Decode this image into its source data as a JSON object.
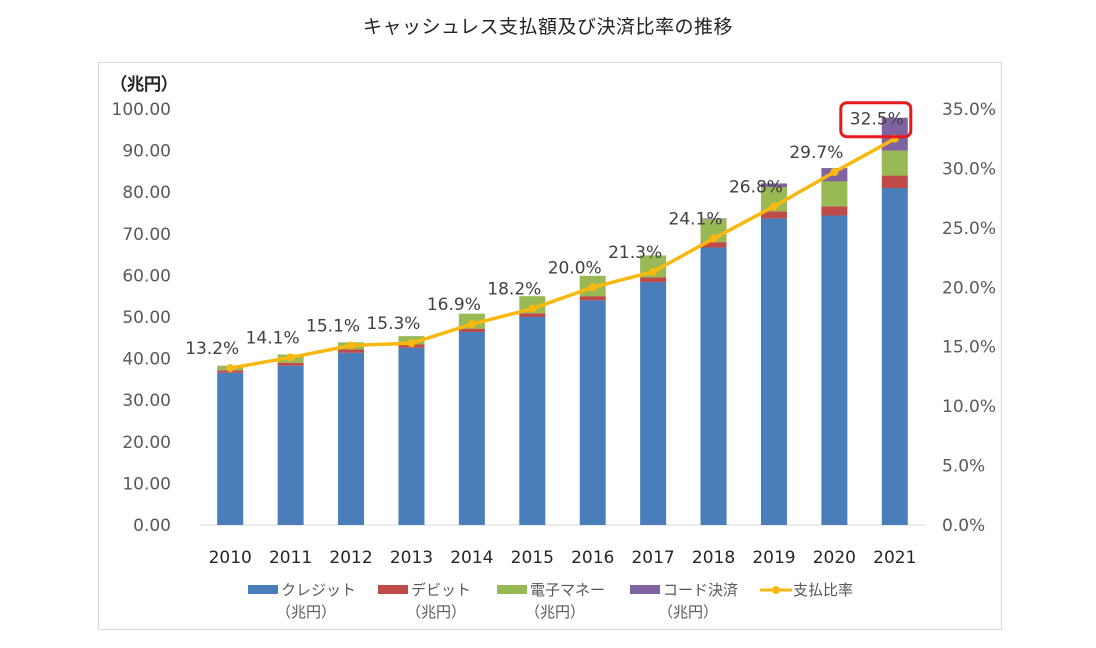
{
  "chart_data": {
    "type": "bar",
    "stacked": true,
    "title": "キャッシュレス支払額及び決済比率の推移",
    "ylabel": "（兆円）",
    "ylim": [
      0,
      100
    ],
    "y2lim": [
      0,
      35
    ],
    "yticks": [
      "0.00",
      "10.00",
      "20.00",
      "30.00",
      "40.00",
      "50.00",
      "60.00",
      "70.00",
      "80.00",
      "90.00",
      "100.00"
    ],
    "y2ticks": [
      "0.0%",
      "5.0%",
      "10.0%",
      "15.0%",
      "20.0%",
      "25.0%",
      "30.0%",
      "35.0%"
    ],
    "categories": [
      "2010",
      "2011",
      "2012",
      "2013",
      "2014",
      "2015",
      "2016",
      "2017",
      "2018",
      "2019",
      "2020",
      "2021"
    ],
    "series": [
      {
        "name": "クレジット",
        "unit": "（兆円）",
        "color": "#4a7ebb",
        "values": [
          36.6,
          38.3,
          41.4,
          42.6,
          46.4,
          50.0,
          54.0,
          58.4,
          66.7,
          73.7,
          74.4,
          81.0
        ]
      },
      {
        "name": "デビット",
        "unit": "（兆円）",
        "color": "#be4b48",
        "values": [
          0.6,
          0.7,
          0.8,
          0.8,
          0.8,
          0.9,
          1.0,
          1.1,
          1.3,
          1.7,
          2.2,
          3.0
        ]
      },
      {
        "name": "電子マネー",
        "unit": "（兆円）",
        "color": "#98b954",
        "values": [
          1.1,
          2.0,
          1.7,
          2.0,
          3.6,
          4.1,
          4.9,
          5.3,
          5.5,
          5.8,
          6.0,
          6.0
        ]
      },
      {
        "name": "コード決済",
        "unit": "（兆円）",
        "color": "#7e63a0",
        "values": [
          0,
          0,
          0,
          0,
          0,
          0,
          0,
          0,
          0.2,
          0.9,
          3.2,
          7.9
        ]
      }
    ],
    "line": {
      "name": "支払比率",
      "color": "#f9b80f",
      "values": [
        13.2,
        14.1,
        15.1,
        15.3,
        16.9,
        18.2,
        20.0,
        21.3,
        24.1,
        26.8,
        29.7,
        32.5
      ],
      "labels": [
        "13.2%",
        "14.1%",
        "15.1%",
        "15.3%",
        "16.9%",
        "18.2%",
        "20.0%",
        "21.3%",
        "24.1%",
        "26.8%",
        "29.7%",
        "32.5%"
      ]
    },
    "highlight": {
      "label": "32.5%",
      "color": "#e8191c"
    }
  }
}
